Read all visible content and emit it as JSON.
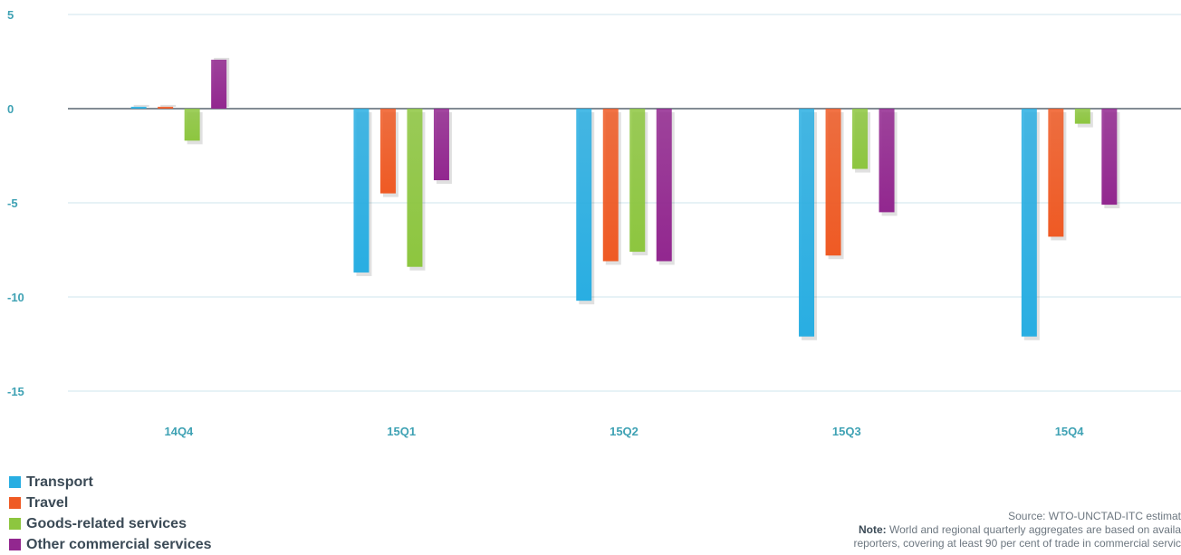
{
  "chart_data": {
    "type": "bar",
    "categories": [
      "14Q4",
      "15Q1",
      "15Q2",
      "15Q3",
      "15Q4"
    ],
    "series": [
      {
        "name": "Transport",
        "color": "#29aee2",
        "values": [
          0.1,
          -8.7,
          -10.2,
          -12.1,
          -12.1
        ]
      },
      {
        "name": "Travel",
        "color": "#ef5a24",
        "values": [
          0.1,
          -4.5,
          -8.1,
          -7.8,
          -6.8
        ]
      },
      {
        "name": "Goods-related services",
        "color": "#8dc63f",
        "values": [
          -1.7,
          -8.4,
          -7.6,
          -3.2,
          -0.8
        ]
      },
      {
        "name": "Other commercial services",
        "color": "#92278f",
        "values": [
          2.6,
          -3.8,
          -8.1,
          -5.5,
          -5.1
        ]
      }
    ],
    "yticks": [
      5,
      0,
      -5,
      -10,
      -15
    ],
    "ylim": [
      -15,
      5
    ],
    "title": "",
    "xlabel": "",
    "ylabel": "",
    "grid": true,
    "legend_position": "bottom-left"
  },
  "source": {
    "text": "Source: WTO-UNCTAD-ITC estimat",
    "note_label": "Note:",
    "note_text": " World and regional quarterly aggregates are based on availa",
    "note_text2": "reporters, covering at least 90 per cent of trade in commercial servic"
  }
}
